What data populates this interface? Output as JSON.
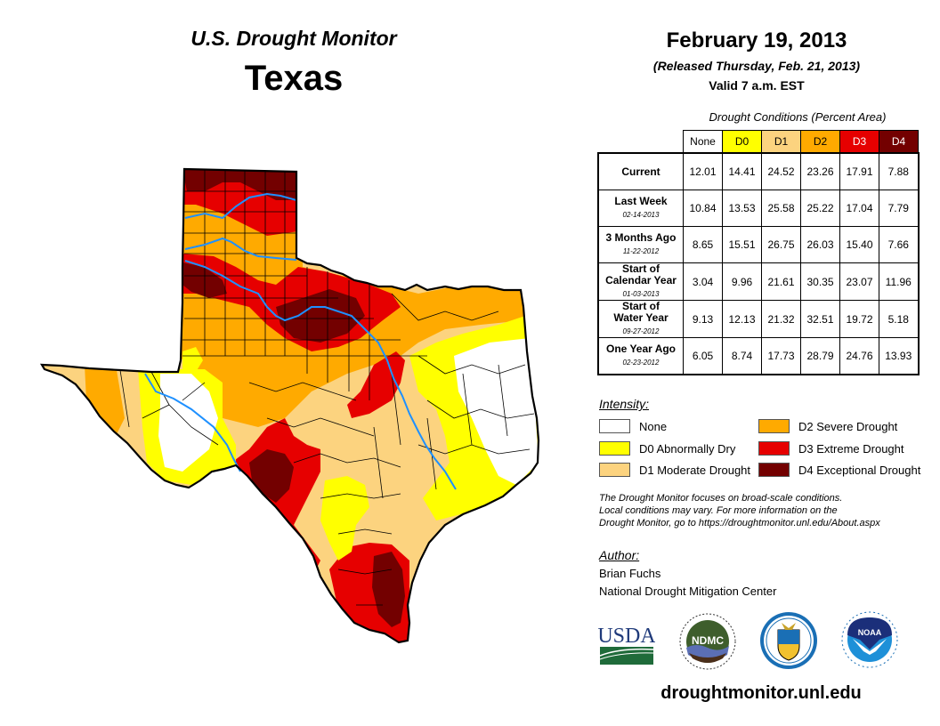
{
  "header": {
    "subtitle": "U.S. Drought Monitor",
    "state": "Texas",
    "date": "February 19, 2013",
    "released": "(Released Thursday, Feb. 21, 2013)",
    "valid": "Valid 7 a.m. EST"
  },
  "table": {
    "caption": "Drought Conditions (Percent Area)",
    "columns": [
      {
        "label": "None",
        "color": "#ffffff",
        "text_color": "#000000"
      },
      {
        "label": "D0",
        "color": "#ffff00",
        "text_color": "#000000"
      },
      {
        "label": "D1",
        "color": "#fcd37f",
        "text_color": "#000000"
      },
      {
        "label": "D2",
        "color": "#ffaa00",
        "text_color": "#000000"
      },
      {
        "label": "D3",
        "color": "#e60000",
        "text_color": "#ffffff"
      },
      {
        "label": "D4",
        "color": "#730000",
        "text_color": "#ffffff"
      }
    ],
    "rows": [
      {
        "label": "Current",
        "label2": "",
        "date": "",
        "values": [
          "12.01",
          "14.41",
          "24.52",
          "23.26",
          "17.91",
          "7.88"
        ]
      },
      {
        "label": "Last Week",
        "label2": "",
        "date": "02-14-2013",
        "values": [
          "10.84",
          "13.53",
          "25.58",
          "25.22",
          "17.04",
          "7.79"
        ]
      },
      {
        "label": "3 Months Ago",
        "label2": "",
        "date": "11-22-2012",
        "values": [
          "8.65",
          "15.51",
          "26.75",
          "26.03",
          "15.40",
          "7.66"
        ]
      },
      {
        "label": "Start of",
        "label2": "Calendar Year",
        "date": "01-03-2013",
        "values": [
          "3.04",
          "9.96",
          "21.61",
          "30.35",
          "23.07",
          "11.96"
        ]
      },
      {
        "label": "Start of",
        "label2": "Water Year",
        "date": "09-27-2012",
        "values": [
          "9.13",
          "12.13",
          "21.32",
          "32.51",
          "19.72",
          "5.18"
        ]
      },
      {
        "label": "One Year Ago",
        "label2": "",
        "date": "02-23-2012",
        "values": [
          "6.05",
          "8.74",
          "17.73",
          "28.79",
          "24.76",
          "13.93"
        ]
      }
    ]
  },
  "legend": {
    "title": "Intensity:",
    "items": [
      {
        "label": "None",
        "color": "#ffffff"
      },
      {
        "label": "D0 Abnormally Dry",
        "color": "#ffff00"
      },
      {
        "label": "D1 Moderate Drought",
        "color": "#fcd37f"
      },
      {
        "label": "D2 Severe Drought",
        "color": "#ffaa00"
      },
      {
        "label": "D3 Extreme Drought",
        "color": "#e60000"
      },
      {
        "label": "D4 Exceptional Drought",
        "color": "#730000"
      }
    ]
  },
  "disclaimer": [
    "The Drought Monitor focuses on broad-scale conditions.",
    "Local conditions may vary. For more information on the",
    "Drought Monitor, go to https://droughtmonitor.unl.edu/About.aspx"
  ],
  "author": {
    "title": "Author:",
    "name": "Brian Fuchs",
    "org": "National Drought Mitigation Center"
  },
  "logos": {
    "usda": "USDA",
    "ndmc": "NDMC",
    "commerce": "commerce-seal",
    "noaa": "NOAA"
  },
  "website": "droughtmonitor.unl.edu",
  "map": {
    "region": "Texas",
    "river_color": "#1e90ff",
    "border_color": "#000000"
  }
}
